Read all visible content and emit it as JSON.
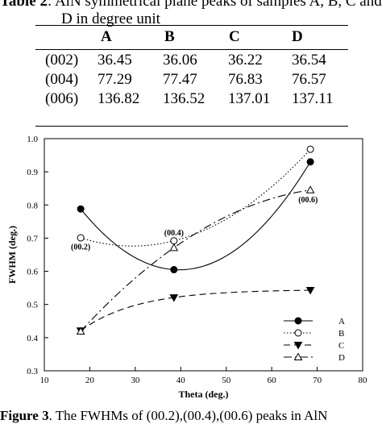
{
  "table": {
    "caption_label": "Table 2",
    "caption_rest": ": AlN symmetrical plane peaks of samples A, B, C and",
    "caption_line2": "D in degree unit",
    "columns": [
      "A",
      "B",
      "C",
      "D"
    ],
    "rows": [
      {
        "label": "(002)",
        "values": [
          "36.45",
          "36.06",
          "36.22",
          "36.54"
        ]
      },
      {
        "label": "(004)",
        "values": [
          "77.29",
          "77.47",
          "76.83",
          "76.57"
        ]
      },
      {
        "label": "(006)",
        "values": [
          "136.82",
          "136.52",
          "137.01",
          "137.11"
        ]
      }
    ]
  },
  "figure": {
    "caption_label": "Figure 3",
    "caption_rest": ". The FWHMs of (00.2),(00.4),(00.6) peaks in AlN"
  },
  "chart_data": {
    "type": "scatter",
    "xlabel": "Theta (deg.)",
    "ylabel": "FWHM (deg.)",
    "xlim": [
      10,
      80
    ],
    "ylim": [
      0.3,
      1.0
    ],
    "xticks": [
      "10",
      "20",
      "30",
      "40",
      "50",
      "60",
      "70",
      "80"
    ],
    "yticks": [
      "0.3",
      "0.4",
      "0.5",
      "0.6",
      "0.7",
      "0.8",
      "0.9",
      "1.0"
    ],
    "grid": false,
    "legend_position": "bottom-right",
    "annotations": [
      {
        "text": "(00.2)",
        "x": 18,
        "y": 0.675
      },
      {
        "text": "(00.4)",
        "x": 38.5,
        "y": 0.718
      },
      {
        "text": "(00.6)",
        "x": 68,
        "y": 0.818
      }
    ],
    "series": [
      {
        "name": "A",
        "marker": "filled-circle",
        "line": "solid",
        "x": [
          18.0,
          38.5,
          68.5
        ],
        "y": [
          0.788,
          0.605,
          0.93
        ]
      },
      {
        "name": "B",
        "marker": "open-circle",
        "line": "dotted",
        "x": [
          18.0,
          38.5,
          68.5
        ],
        "y": [
          0.701,
          0.692,
          0.968
        ]
      },
      {
        "name": "C",
        "marker": "filled-triangle-down",
        "line": "dashed",
        "x": [
          18.0,
          38.5,
          68.5
        ],
        "y": [
          0.421,
          0.521,
          0.543
        ]
      },
      {
        "name": "D",
        "marker": "open-triangle-up",
        "line": "dash-dot",
        "x": [
          18.0,
          38.5,
          68.5
        ],
        "y": [
          0.419,
          0.671,
          0.845
        ]
      }
    ]
  }
}
